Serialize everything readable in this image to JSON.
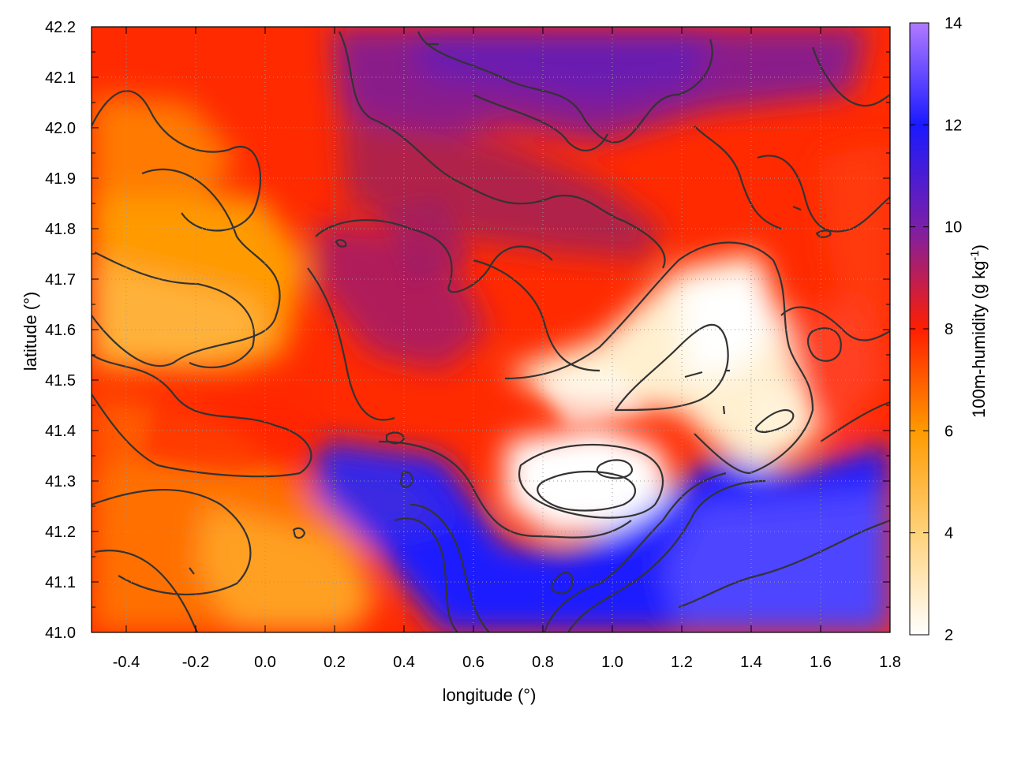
{
  "chart_data": {
    "type": "heatmap",
    "xlabel": "longitude (°)",
    "ylabel": "latitude (°)",
    "xlim": [
      -0.5,
      1.8
    ],
    "ylim": [
      41.0,
      42.2
    ],
    "xticks": [
      "-0.4",
      "-0.2",
      "0.0",
      "0.2",
      "0.4",
      "0.6",
      "0.8",
      "1.0",
      "1.2",
      "1.4",
      "1.6",
      "1.8"
    ],
    "xtick_values": [
      -0.4,
      -0.2,
      0.0,
      0.2,
      0.4,
      0.6,
      0.8,
      1.0,
      1.2,
      1.4,
      1.6,
      1.8
    ],
    "yticks": [
      "41.0",
      "41.1",
      "41.2",
      "41.3",
      "41.4",
      "41.5",
      "41.6",
      "41.7",
      "41.8",
      "41.9",
      "42.0",
      "42.1",
      "42.2"
    ],
    "ytick_values": [
      41.0,
      41.1,
      41.2,
      41.3,
      41.4,
      41.5,
      41.6,
      41.7,
      41.8,
      41.9,
      42.0,
      42.1,
      42.2
    ],
    "grid": true,
    "colorbar": {
      "label": "100m-humidity (g kg",
      "label_exponent": "-1",
      "label_close": ")",
      "range": [
        2,
        14
      ],
      "ticks": [
        "2",
        "4",
        "6",
        "8",
        "10",
        "12",
        "14"
      ],
      "tick_values": [
        2,
        4,
        6,
        8,
        10,
        12,
        14
      ],
      "palette_stops": [
        {
          "value": 2,
          "color": "#ffffff"
        },
        {
          "value": 4,
          "color": "#ffd27a"
        },
        {
          "value": 6,
          "color": "#ff9a00"
        },
        {
          "value": 8,
          "color": "#ff1e00"
        },
        {
          "value": 10,
          "color": "#7a1fa8"
        },
        {
          "value": 12,
          "color": "#1a1aff"
        },
        {
          "value": 14,
          "color": "#b07aff"
        }
      ]
    },
    "field_description": "humidity field: values near 5 g/kg west (orange), 7-8 g/kg across center (red), 9-10 g/kg north (purple), 11-13 g/kg south-east (blue), minima 2-3 g/kg near 0.8-1.4 lon, 41.3-41.6 lat (white)",
    "contour_color": "#333333"
  }
}
